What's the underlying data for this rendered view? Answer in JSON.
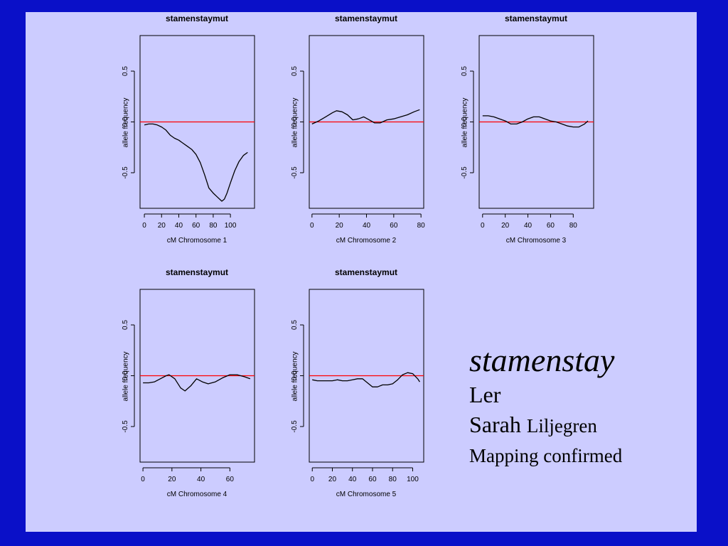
{
  "chart_data": [
    {
      "type": "line",
      "title": "stamenstaymut",
      "xlabel": "cM Chromosome 1",
      "ylabel": "allele frequency",
      "xlim": [
        -5,
        128
      ],
      "ylim": [
        -0.85,
        0.85
      ],
      "xticks": [
        0,
        20,
        40,
        60,
        80,
        100
      ],
      "yticks": [
        -0.5,
        0.0,
        0.5
      ],
      "reference_line": {
        "y": 0.0,
        "color": "#ff0000"
      },
      "x": [
        0,
        5,
        10,
        15,
        20,
        25,
        30,
        35,
        40,
        45,
        50,
        55,
        60,
        65,
        70,
        75,
        80,
        85,
        90,
        93,
        96,
        100,
        105,
        110,
        115,
        120
      ],
      "y": [
        -0.03,
        -0.02,
        -0.02,
        -0.03,
        -0.05,
        -0.08,
        -0.13,
        -0.16,
        -0.18,
        -0.21,
        -0.24,
        -0.27,
        -0.32,
        -0.4,
        -0.52,
        -0.65,
        -0.7,
        -0.74,
        -0.78,
        -0.76,
        -0.7,
        -0.6,
        -0.48,
        -0.39,
        -0.33,
        -0.3
      ]
    },
    {
      "type": "line",
      "title": "stamenstaymut",
      "xlabel": "cM Chromosome 2",
      "ylabel": "allele frequency",
      "xlim": [
        -2,
        82
      ],
      "ylim": [
        -0.85,
        0.85
      ],
      "xticks": [
        0,
        20,
        40,
        60,
        80
      ],
      "yticks": [
        -0.5,
        0.0,
        0.5
      ],
      "reference_line": {
        "y": 0.0,
        "color": "#ff0000"
      },
      "x": [
        0,
        5,
        10,
        15,
        18,
        22,
        26,
        30,
        34,
        38,
        42,
        46,
        50,
        55,
        60,
        65,
        70,
        75,
        79
      ],
      "y": [
        -0.02,
        0.01,
        0.05,
        0.09,
        0.11,
        0.1,
        0.07,
        0.02,
        0.03,
        0.05,
        0.02,
        -0.01,
        -0.01,
        0.02,
        0.03,
        0.05,
        0.07,
        0.1,
        0.12
      ]
    },
    {
      "type": "line",
      "title": "stamenstaymut",
      "xlabel": "cM Chromosome 3",
      "ylabel": "allele frequency",
      "xlim": [
        -3,
        98
      ],
      "ylim": [
        -0.85,
        0.85
      ],
      "xticks": [
        0,
        20,
        40,
        60,
        80
      ],
      "yticks": [
        -0.5,
        0.0,
        0.5
      ],
      "reference_line": {
        "y": 0.0,
        "color": "#ff0000"
      },
      "x": [
        0,
        5,
        10,
        15,
        20,
        25,
        30,
        35,
        40,
        45,
        50,
        55,
        60,
        65,
        70,
        75,
        80,
        85,
        90,
        93
      ],
      "y": [
        0.06,
        0.06,
        0.05,
        0.03,
        0.01,
        -0.02,
        -0.02,
        0.0,
        0.03,
        0.05,
        0.05,
        0.03,
        0.01,
        0.0,
        -0.02,
        -0.04,
        -0.05,
        -0.05,
        -0.02,
        0.01
      ]
    },
    {
      "type": "line",
      "title": "stamenstaymut",
      "xlabel": "cM Chromosome 4",
      "ylabel": "allele frequency",
      "xlim": [
        -2,
        77
      ],
      "ylim": [
        -0.85,
        0.85
      ],
      "xticks": [
        0,
        20,
        40,
        60
      ],
      "yticks": [
        -0.5,
        0.0,
        0.5
      ],
      "reference_line": {
        "y": 0.0,
        "color": "#ff0000"
      },
      "x": [
        0,
        4,
        8,
        12,
        16,
        18,
        22,
        26,
        29,
        33,
        37,
        41,
        45,
        50,
        55,
        60,
        65,
        70,
        74
      ],
      "y": [
        -0.07,
        -0.07,
        -0.06,
        -0.03,
        0.0,
        0.01,
        -0.03,
        -0.12,
        -0.15,
        -0.1,
        -0.03,
        -0.06,
        -0.08,
        -0.06,
        -0.02,
        0.01,
        0.01,
        -0.01,
        -0.03
      ]
    },
    {
      "type": "line",
      "title": "stamenstaymut",
      "xlabel": "cM Chromosome 5",
      "ylabel": "allele frequency",
      "xlim": [
        -3,
        111
      ],
      "ylim": [
        -0.85,
        0.85
      ],
      "xticks": [
        0,
        20,
        40,
        60,
        80,
        100
      ],
      "yticks": [
        -0.5,
        0.0,
        0.5
      ],
      "reference_line": {
        "y": 0.0,
        "color": "#ff0000"
      },
      "x": [
        0,
        5,
        10,
        15,
        20,
        25,
        30,
        35,
        40,
        45,
        50,
        55,
        60,
        65,
        70,
        75,
        80,
        85,
        90,
        95,
        100,
        105,
        107
      ],
      "y": [
        -0.04,
        -0.05,
        -0.05,
        -0.05,
        -0.05,
        -0.04,
        -0.05,
        -0.05,
        -0.04,
        -0.03,
        -0.03,
        -0.07,
        -0.11,
        -0.11,
        -0.09,
        -0.09,
        -0.08,
        -0.04,
        0.01,
        0.03,
        0.02,
        -0.03,
        -0.06
      ]
    }
  ],
  "caption": {
    "line1": "stamenstay",
    "line2": "Ler",
    "line3_a": "Sarah ",
    "line3_b": "Liljegren",
    "line4": "Mapping confirmed"
  }
}
